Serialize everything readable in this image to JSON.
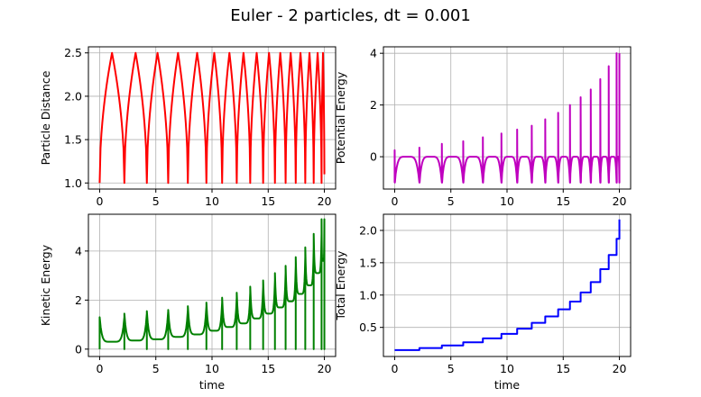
{
  "figure": {
    "title": "Euler - 2 particles, dt = 0.001"
  },
  "chart_data": [
    {
      "type": "line",
      "title": "",
      "xlabel": "",
      "ylabel": "Particle Distance",
      "color": "#ff0000",
      "xlim": [
        -1,
        21
      ],
      "ylim": [
        0.93,
        2.57
      ],
      "xticks": [
        0,
        5,
        10,
        15,
        20
      ],
      "yticks": [
        1.0,
        1.5,
        2.0,
        2.5
      ],
      "ytick_labels": [
        "1.0",
        "1.5",
        "2.0",
        "2.5"
      ],
      "grid": true,
      "shape": "collision-triangle",
      "collision_times": [
        0,
        2.2,
        4.2,
        6.1,
        7.85,
        9.5,
        10.9,
        12.2,
        13.4,
        14.55,
        15.6,
        16.55,
        17.45,
        18.3,
        19.05,
        19.75
      ],
      "end": {
        "x": 20.0,
        "y": 1.1
      },
      "x": [],
      "y": [],
      "peak": 2.5,
      "base": 1.0
    },
    {
      "type": "line",
      "title": "",
      "xlabel": "",
      "ylabel": "Potential Energy",
      "color": "#bf00bf",
      "xlim": [
        -1,
        21
      ],
      "ylim": [
        -1.25,
        4.25
      ],
      "xticks": [
        0,
        5,
        10,
        15,
        20
      ],
      "yticks": [
        0,
        2,
        4
      ],
      "ytick_labels": [
        "0",
        "2",
        "4"
      ],
      "grid": true,
      "shape": "potential-spikes",
      "collision_times": [
        0,
        2.2,
        4.2,
        6.1,
        7.85,
        9.5,
        10.9,
        12.2,
        13.4,
        14.55,
        15.6,
        16.55,
        17.45,
        18.3,
        19.05,
        19.75
      ],
      "spike_peaks": [
        0.25,
        0.35,
        0.5,
        0.6,
        0.75,
        0.9,
        1.05,
        1.2,
        1.45,
        1.7,
        2.0,
        2.3,
        2.6,
        3.0,
        3.5,
        4.0
      ],
      "x": [],
      "y": []
    },
    {
      "type": "line",
      "title": "",
      "xlabel": "time",
      "ylabel": "Kinetic Energy",
      "color": "#008000",
      "xlim": [
        -1,
        21
      ],
      "ylim": [
        -0.3,
        5.5
      ],
      "xticks": [
        0,
        5,
        10,
        15,
        20
      ],
      "yticks": [
        0,
        2,
        4
      ],
      "ytick_labels": [
        "0",
        "2",
        "4"
      ],
      "grid": true,
      "shape": "kinetic-spikes",
      "collision_times": [
        0,
        2.2,
        4.2,
        6.1,
        7.85,
        9.5,
        10.9,
        12.2,
        13.4,
        14.55,
        15.6,
        16.55,
        17.45,
        18.3,
        19.05,
        19.75
      ],
      "spike_peaks": [
        1.3,
        1.45,
        1.55,
        1.6,
        1.75,
        1.9,
        2.1,
        2.3,
        2.55,
        2.8,
        3.1,
        3.4,
        3.75,
        4.15,
        4.7,
        5.3
      ],
      "trough_mins": [
        0.3,
        0.35,
        0.4,
        0.5,
        0.6,
        0.75,
        0.9,
        1.05,
        1.25,
        1.45,
        1.7,
        1.95,
        2.25,
        2.6,
        3.1,
        3.6
      ],
      "x": [],
      "y": []
    },
    {
      "type": "line",
      "title": "",
      "xlabel": "time",
      "ylabel": "Total Energy",
      "color": "#0000ff",
      "xlim": [
        -1,
        21
      ],
      "ylim": [
        0.05,
        2.25
      ],
      "xticks": [
        0,
        5,
        10,
        15,
        20
      ],
      "yticks": [
        0.5,
        1.0,
        1.5,
        2.0
      ],
      "ytick_labels": [
        "0.5",
        "1.0",
        "1.5",
        "2.0"
      ],
      "grid": true,
      "shape": "staircase",
      "step_times": [
        0,
        2.2,
        4.2,
        6.1,
        7.85,
        9.5,
        10.9,
        12.2,
        13.4,
        14.55,
        15.6,
        16.55,
        17.45,
        18.3,
        19.05,
        19.75,
        20.0
      ],
      "step_levels": [
        0.15,
        0.18,
        0.22,
        0.27,
        0.33,
        0.4,
        0.48,
        0.57,
        0.67,
        0.78,
        0.9,
        1.04,
        1.2,
        1.4,
        1.62,
        1.87,
        2.17
      ],
      "x": [],
      "y": []
    }
  ]
}
